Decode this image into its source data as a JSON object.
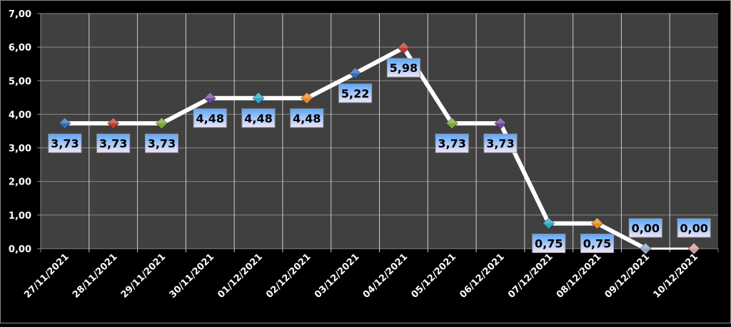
{
  "chart_data": {
    "type": "line",
    "title": "",
    "xlabel": "",
    "ylabel": "",
    "categories": [
      "27/11/2021",
      "28/11/2021",
      "29/11/2021",
      "30/11/2021",
      "01/12/2021",
      "02/12/2021",
      "03/12/2021",
      "04/12/2021",
      "05/12/2021",
      "06/12/2021",
      "07/12/2021",
      "08/12/2021",
      "09/12/2021",
      "10/12/2021"
    ],
    "values": [
      3.73,
      3.73,
      3.73,
      4.48,
      4.48,
      4.48,
      5.22,
      5.98,
      3.73,
      3.73,
      0.75,
      0.75,
      0.0,
      0.0
    ],
    "data_labels": [
      "3,73",
      "3,73",
      "3,73",
      "4,48",
      "4,48",
      "4,48",
      "5,22",
      "5,98",
      "3,73",
      "3,73",
      "0,75",
      "0,75",
      "0,00",
      "0,00"
    ],
    "ylim": [
      0,
      7
    ],
    "y_ticks": [
      "0,00",
      "1,00",
      "2,00",
      "3,00",
      "4,00",
      "5,00",
      "6,00",
      "7,00"
    ],
    "grid": true,
    "legend": "none",
    "colors": {
      "background": "#000000",
      "plot_area": "#404040",
      "gridline": "#8a8a8a",
      "line": "#ffffff",
      "text": "#ffffff",
      "marker_colors": [
        "#2f6db3",
        "#c0392f",
        "#7ea63a",
        "#6c4a9c",
        "#2aa7c6",
        "#e88a22",
        "#2f6db3",
        "#c0392f",
        "#7ea63a",
        "#6c4a9c",
        "#2aa7c6",
        "#e88a22",
        "#8ea2c6",
        "#d19a9a"
      ]
    }
  }
}
